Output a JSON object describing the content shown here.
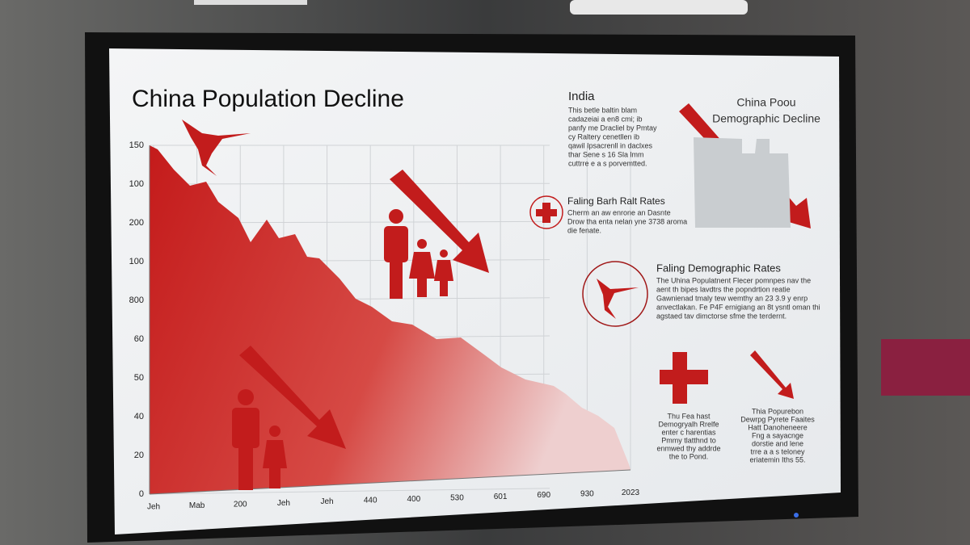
{
  "infographic": {
    "title": "China Population Decline",
    "y_labels": [
      "150",
      "100",
      "200",
      "100",
      "800",
      "60",
      "50",
      "40",
      "20",
      "0"
    ],
    "x_labels": [
      "Jeh",
      "Mab",
      "200",
      "Jeh",
      "Jeh",
      "440",
      "400",
      "530",
      "601",
      "690",
      "930",
      "2023"
    ],
    "india": {
      "heading": "India",
      "lines": [
        "This betle baltin blam",
        "cadazeiai a en8 cmi; ib",
        "panfy me Dracliel by Pmtay",
        "cy Raltery cenetllen ib",
        "qawil Ipsacrenll in daclxes",
        "thar Sene s 16 Sla lmm",
        "cuttrre e a s porvemtted."
      ]
    },
    "badge": {
      "lines": [
        "China Poou",
        "Demographic Decline"
      ]
    },
    "birth": {
      "heading": "Faling Barh Ralt Rates",
      "lines": [
        "Cherm an aw enrone an Dasnte",
        "Drow tha enta nelan yne 3738 aroma",
        "die fenate."
      ]
    },
    "demo": {
      "heading": "Faling Demographic Rates",
      "lines": [
        "The Uhina Populatnent Flecer pomnpes nav the",
        "aent th bipes lavdtrs the popndrtion reatie",
        "Gawnienad tmaly tew wemthy an 23 3.9 y enrp",
        "anvectlakan. Fe P4F ernigiang an 8t ysntl oman thi",
        "agstaed tav dimctorse sfme the terdernt."
      ]
    },
    "note_left": {
      "lines": [
        "Thu Fea hast",
        "Demogryalh Rrelfe",
        "enter c harentias",
        "Pmmy tlatthnd to",
        "enmwed thy addrde",
        "the to Pond."
      ]
    },
    "note_right": {
      "lines": [
        "Thia Popurebon",
        "Dewrpg Pyrete Faaites",
        "Hatt Danoheneere",
        "Fng a sayacnge",
        "dorstie and lene",
        "trre a a s teloney",
        "eriatemin Iths 55."
      ]
    }
  }
}
